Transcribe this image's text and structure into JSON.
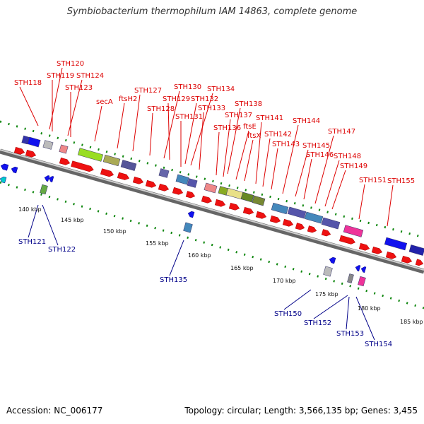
{
  "title": "Symbiobacterium thermophilum IAM 14863, complete genome",
  "footer": {
    "accession": "Accession: NC_006177",
    "summary": "Topology: circular; Length: 3,566,135 bp; Genes: 3,455"
  },
  "top_labels": [
    "STH118",
    "STH120",
    "STH119",
    "STH124",
    "STH123",
    "secA",
    "ftsH2",
    "STH127",
    "STH128",
    "STH130",
    "STH129",
    "STH132",
    "STH134",
    "STH131",
    "STH133",
    "STH138",
    "STH136",
    "STH137",
    "ftsE",
    "ftsX",
    "STH141",
    "STH142",
    "STH143",
    "STH144",
    "STH145",
    "STH146",
    "STH147",
    "STH148",
    "STH149",
    "STH151",
    "STH155"
  ],
  "bottom_labels": [
    "STH121",
    "STH122",
    "STH135",
    "STH150",
    "STH152",
    "STH153",
    "STH154"
  ],
  "kbp_ticks": [
    "140 kbp",
    "145 kbp",
    "150 kbp",
    "155 kbp",
    "160 kbp",
    "165 kbp",
    "170 kbp",
    "175 kbp",
    "180 kbp",
    "185 kbp"
  ],
  "colors": {
    "forward_gene": "#ee1111",
    "reverse_gene": "#1111ee",
    "top_label": "#dd0000",
    "bottom_label": "#000088",
    "backbone": "#888888",
    "tick_dots": "#118811"
  }
}
